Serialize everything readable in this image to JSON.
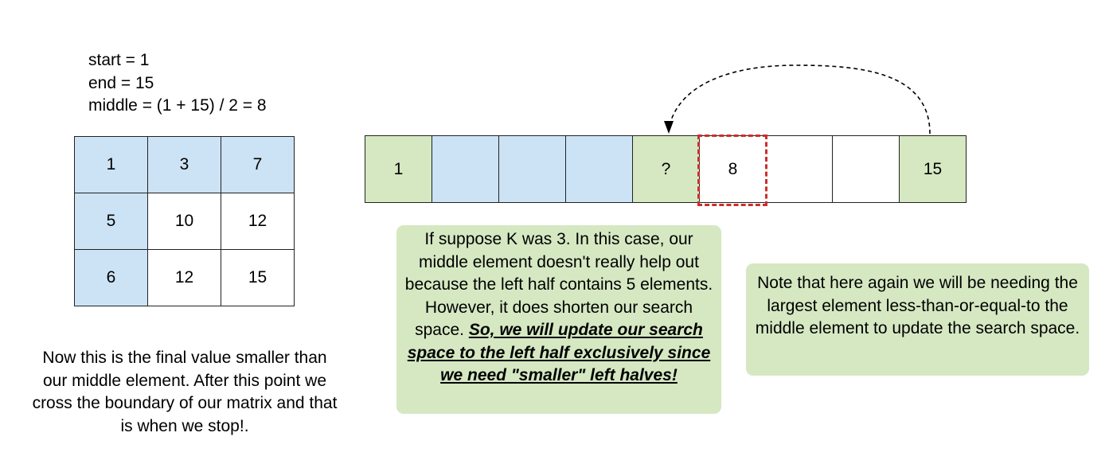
{
  "vars": {
    "start": "start = 1",
    "end": "end = 15",
    "middle": "middle = (1 + 15) / 2 = 8"
  },
  "matrix": {
    "rows": [
      [
        "1",
        "3",
        "7"
      ],
      [
        "5",
        "10",
        "12"
      ],
      [
        "6",
        "12",
        "15"
      ]
    ]
  },
  "array": {
    "cells": [
      "1",
      "",
      "",
      "",
      "?",
      "8",
      "",
      "",
      "15"
    ]
  },
  "note1": {
    "plain": "If suppose K was 3. In this case, our middle element doesn't really help out because the left half contains 5 elements. However, it does shorten our search space. ",
    "emphasis": "So, we will update our search space to the left half exclusively since we need \"smaller\" left halves!"
  },
  "note2": {
    "text": "Note that here again we will be needing the largest element less-than-or-equal-to the middle element to update the search space."
  },
  "caption": {
    "text": "Now this is the final value smaller than our middle element. After this point we cross the boundary of our matrix and that is when we stop!."
  },
  "colors": {
    "blue_fill": "#cce3f5",
    "green_fill": "#d5e8c2",
    "dashed_border": "#c9302c"
  }
}
